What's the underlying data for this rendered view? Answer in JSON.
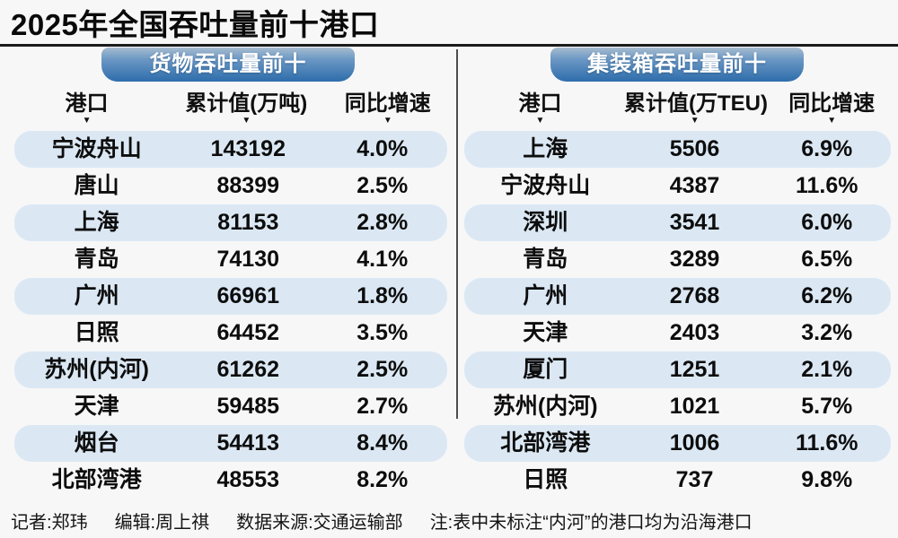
{
  "title": "2025年全国吞吐量前十港口",
  "icons": {
    "sort_indicator": "▼"
  },
  "colors": {
    "background": "#f7f7f8",
    "badge_gradient_top": "#a7bccf",
    "badge_gradient_bottom": "#2d6dab",
    "row_highlight": "#dbe8f4",
    "rule_black": "#1a1a1a",
    "divider_gray": "#4d4d4d",
    "text": "#0d0d0d",
    "badge_text": "#ffffff"
  },
  "chart_data": [
    {
      "type": "table",
      "title": "货物吞吐量前十",
      "columns": [
        "港口",
        "累计值(万吨)",
        "同比增速"
      ],
      "rows": [
        [
          "宁波舟山",
          "143192",
          "4.0%"
        ],
        [
          "唐山",
          "88399",
          "2.5%"
        ],
        [
          "上海",
          "81153",
          "2.8%"
        ],
        [
          "青岛",
          "74130",
          "4.1%"
        ],
        [
          "广州",
          "66961",
          "1.8%"
        ],
        [
          "日照",
          "64452",
          "3.5%"
        ],
        [
          "苏州(内河)",
          "61262",
          "2.5%"
        ],
        [
          "天津",
          "59485",
          "2.7%"
        ],
        [
          "烟台",
          "54413",
          "8.4%"
        ],
        [
          "北部湾港",
          "48553",
          "8.2%"
        ]
      ]
    },
    {
      "type": "table",
      "title": "集装箱吞吐量前十",
      "columns": [
        "港口",
        "累计值(万TEU)",
        "同比增速"
      ],
      "rows": [
        [
          "上海",
          "5506",
          "6.9%"
        ],
        [
          "宁波舟山",
          "4387",
          "11.6%"
        ],
        [
          "深圳",
          "3541",
          "6.0%"
        ],
        [
          "青岛",
          "3289",
          "6.5%"
        ],
        [
          "广州",
          "2768",
          "6.2%"
        ],
        [
          "天津",
          "2403",
          "3.2%"
        ],
        [
          "厦门",
          "1251",
          "2.1%"
        ],
        [
          "苏州(内河)",
          "1021",
          "5.7%"
        ],
        [
          "北部湾港",
          "1006",
          "11.6%"
        ],
        [
          "日照",
          "737",
          "9.8%"
        ]
      ]
    }
  ],
  "footer": {
    "reporter": "记者:郑玮",
    "editor": "编辑:周上祺",
    "source": "数据来源:交通运输部",
    "note": "注:表中未标注“内河”的港口均为沿海港口"
  }
}
